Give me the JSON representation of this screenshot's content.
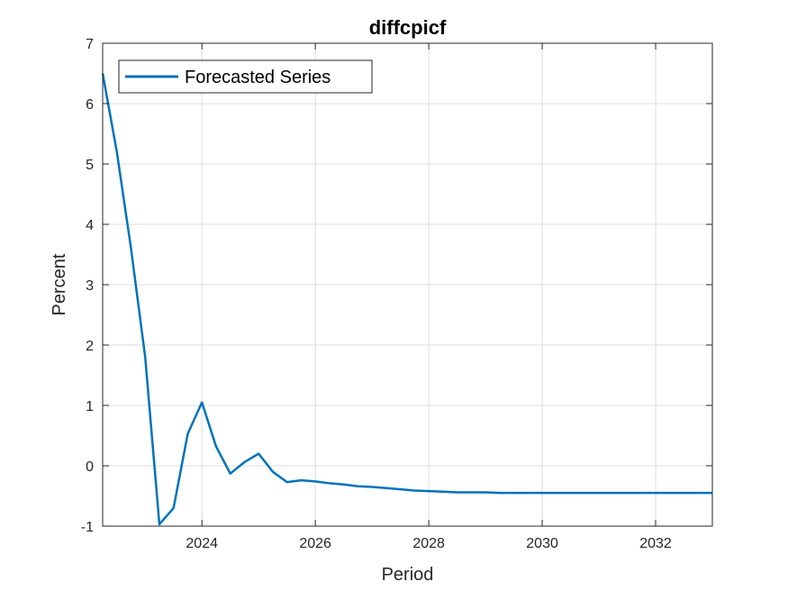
{
  "chart_data": {
    "type": "line",
    "title": "diffcpicf",
    "xlabel": "Period",
    "ylabel": "Percent",
    "xlim": [
      2022.25,
      2033.0
    ],
    "ylim": [
      -1,
      7
    ],
    "xticks": [
      2024,
      2026,
      2028,
      2030,
      2032
    ],
    "yticks": [
      -1,
      0,
      1,
      2,
      3,
      4,
      5,
      6,
      7
    ],
    "grid": true,
    "legend_position": "top-left",
    "series": [
      {
        "name": "Forecasted Series",
        "color": "#0072BD",
        "x": [
          2022.25,
          2022.5,
          2022.75,
          2023.0,
          2023.25,
          2023.5,
          2023.75,
          2024.0,
          2024.25,
          2024.5,
          2024.75,
          2025.0,
          2025.25,
          2025.5,
          2025.75,
          2026.0,
          2026.25,
          2026.5,
          2026.75,
          2027.0,
          2027.25,
          2027.5,
          2027.75,
          2028.0,
          2028.25,
          2028.5,
          2028.75,
          2029.0,
          2029.25,
          2029.5,
          2029.75,
          2030.0,
          2030.25,
          2030.5,
          2030.75,
          2031.0,
          2031.25,
          2031.5,
          2031.75,
          2032.0,
          2032.25,
          2032.5,
          2032.75,
          2033.0
        ],
        "values": [
          6.5,
          5.2,
          3.6,
          1.8,
          -0.97,
          -0.7,
          0.53,
          1.05,
          0.32,
          -0.13,
          0.06,
          0.2,
          -0.1,
          -0.27,
          -0.24,
          -0.26,
          -0.29,
          -0.31,
          -0.34,
          -0.35,
          -0.37,
          -0.39,
          -0.41,
          -0.42,
          -0.43,
          -0.44,
          -0.44,
          -0.44,
          -0.45,
          -0.45,
          -0.45,
          -0.45,
          -0.45,
          -0.45,
          -0.45,
          -0.45,
          -0.45,
          -0.45,
          -0.45,
          -0.45,
          -0.45,
          -0.45,
          -0.45,
          -0.45
        ]
      }
    ]
  }
}
